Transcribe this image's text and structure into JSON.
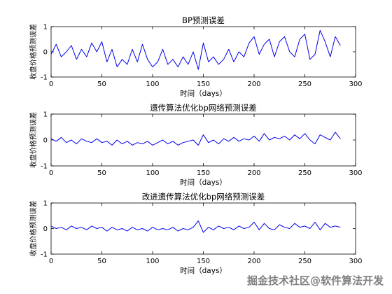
{
  "chart_data": [
    {
      "type": "line",
      "title": "BP预测误差",
      "xlabel": "时间（days）",
      "ylabel": "收盘价格预测误差",
      "xlim": [
        0,
        300
      ],
      "ylim": [
        -1,
        1
      ],
      "xticks": [
        "0",
        "50",
        "100",
        "150",
        "200",
        "250",
        "300"
      ],
      "yticks": [
        "-1",
        "0",
        "1"
      ],
      "grid": false,
      "series": [
        {
          "color": "#0000ee",
          "x": [
            0,
            5,
            10,
            15,
            20,
            25,
            30,
            35,
            40,
            45,
            50,
            55,
            60,
            65,
            70,
            75,
            80,
            85,
            90,
            95,
            100,
            105,
            110,
            115,
            120,
            125,
            130,
            135,
            140,
            145,
            150,
            155,
            160,
            165,
            170,
            175,
            180,
            185,
            190,
            195,
            200,
            205,
            210,
            215,
            220,
            225,
            230,
            235,
            240,
            245,
            250,
            255,
            260,
            265,
            270,
            275,
            280,
            285
          ],
          "y": [
            -0.1,
            0.3,
            -0.2,
            0.0,
            0.25,
            -0.3,
            0.1,
            -0.2,
            0.35,
            0.0,
            0.4,
            -0.4,
            0.1,
            -0.6,
            -0.3,
            -0.5,
            0.1,
            -0.4,
            0.3,
            -0.3,
            -0.6,
            -0.4,
            0.1,
            -0.5,
            -0.3,
            -0.6,
            -0.2,
            -0.5,
            0.0,
            -0.7,
            0.35,
            -0.4,
            -0.2,
            -0.5,
            -0.3,
            0.1,
            -0.4,
            0.0,
            -0.2,
            0.35,
            0.6,
            -0.1,
            0.3,
            0.5,
            -0.2,
            0.4,
            0.6,
            0.0,
            -0.2,
            0.5,
            0.7,
            -0.3,
            -0.1,
            0.85,
            0.4,
            -0.2,
            0.6,
            0.25
          ]
        }
      ]
    },
    {
      "type": "line",
      "title": "遗传算法优化bp网络预测误差",
      "xlabel": "时间（days）",
      "ylabel": "收盘价格预测误差",
      "xlim": [
        0,
        300
      ],
      "ylim": [
        -1,
        1
      ],
      "xticks": [
        "0",
        "50",
        "100",
        "150",
        "200",
        "250",
        "300"
      ],
      "yticks": [
        "-1",
        "0",
        "1"
      ],
      "grid": false,
      "series": [
        {
          "color": "#0000ee",
          "x": [
            0,
            5,
            10,
            15,
            20,
            25,
            30,
            35,
            40,
            45,
            50,
            55,
            60,
            65,
            70,
            75,
            80,
            85,
            90,
            95,
            100,
            105,
            110,
            115,
            120,
            125,
            130,
            135,
            140,
            145,
            150,
            155,
            160,
            165,
            170,
            175,
            180,
            185,
            190,
            195,
            200,
            205,
            210,
            215,
            220,
            225,
            230,
            235,
            240,
            245,
            250,
            255,
            260,
            265,
            270,
            275,
            280,
            285
          ],
          "y": [
            0.05,
            -0.05,
            0.1,
            -0.1,
            0.0,
            -0.15,
            0.05,
            -0.05,
            -0.1,
            0.05,
            -0.1,
            -0.05,
            -0.2,
            0.0,
            -0.15,
            -0.05,
            -0.2,
            -0.1,
            -0.15,
            -0.05,
            -0.2,
            -0.1,
            0.0,
            -0.15,
            -0.05,
            -0.2,
            -0.1,
            -0.05,
            0.0,
            -0.2,
            0.2,
            -0.1,
            0.0,
            -0.15,
            0.05,
            -0.05,
            0.1,
            -0.05,
            0.05,
            0.0,
            0.15,
            -0.05,
            0.25,
            0.0,
            0.1,
            0.05,
            0.15,
            0.0,
            0.2,
            0.05,
            0.25,
            0.0,
            -0.15,
            0.2,
            0.1,
            0.0,
            0.3,
            0.05
          ]
        }
      ]
    },
    {
      "type": "line",
      "title": "改进遗传算法优化bp网络预测误差",
      "xlabel": "时间（days）",
      "ylabel": "收盘价格预测误差",
      "xlim": [
        0,
        300
      ],
      "ylim": [
        -1,
        1
      ],
      "xticks": [
        "0",
        "50",
        "100",
        "150",
        "200",
        "250",
        "300"
      ],
      "yticks": [
        "-1",
        "0",
        "1"
      ],
      "grid": false,
      "series": [
        {
          "color": "#0000ee",
          "x": [
            0,
            5,
            10,
            15,
            20,
            25,
            30,
            35,
            40,
            45,
            50,
            55,
            60,
            65,
            70,
            75,
            80,
            85,
            90,
            95,
            100,
            105,
            110,
            115,
            120,
            125,
            130,
            135,
            140,
            145,
            150,
            155,
            160,
            165,
            170,
            175,
            180,
            185,
            190,
            195,
            200,
            205,
            210,
            215,
            220,
            225,
            230,
            235,
            240,
            245,
            250,
            255,
            260,
            265,
            270,
            275,
            280,
            285
          ],
          "y": [
            0.1,
            0.0,
            0.05,
            -0.05,
            0.1,
            0.0,
            0.05,
            -0.05,
            0.1,
            0.0,
            0.05,
            -0.1,
            0.05,
            -0.05,
            0.0,
            -0.1,
            0.05,
            -0.05,
            0.0,
            -0.1,
            0.05,
            -0.05,
            0.0,
            -0.05,
            0.05,
            -0.1,
            0.0,
            -0.05,
            0.05,
            0.3,
            -0.15,
            0.05,
            -0.05,
            0.1,
            0.0,
            0.05,
            -0.05,
            0.1,
            0.0,
            0.05,
            0.25,
            -0.05,
            0.2,
            0.0,
            -0.05,
            0.15,
            0.05,
            0.0,
            0.2,
            0.05,
            0.1,
            0.0,
            0.25,
            -0.05,
            0.2,
            0.05,
            0.1,
            0.05
          ]
        }
      ]
    }
  ],
  "watermark": "掘金技术社区@软件算法开发"
}
